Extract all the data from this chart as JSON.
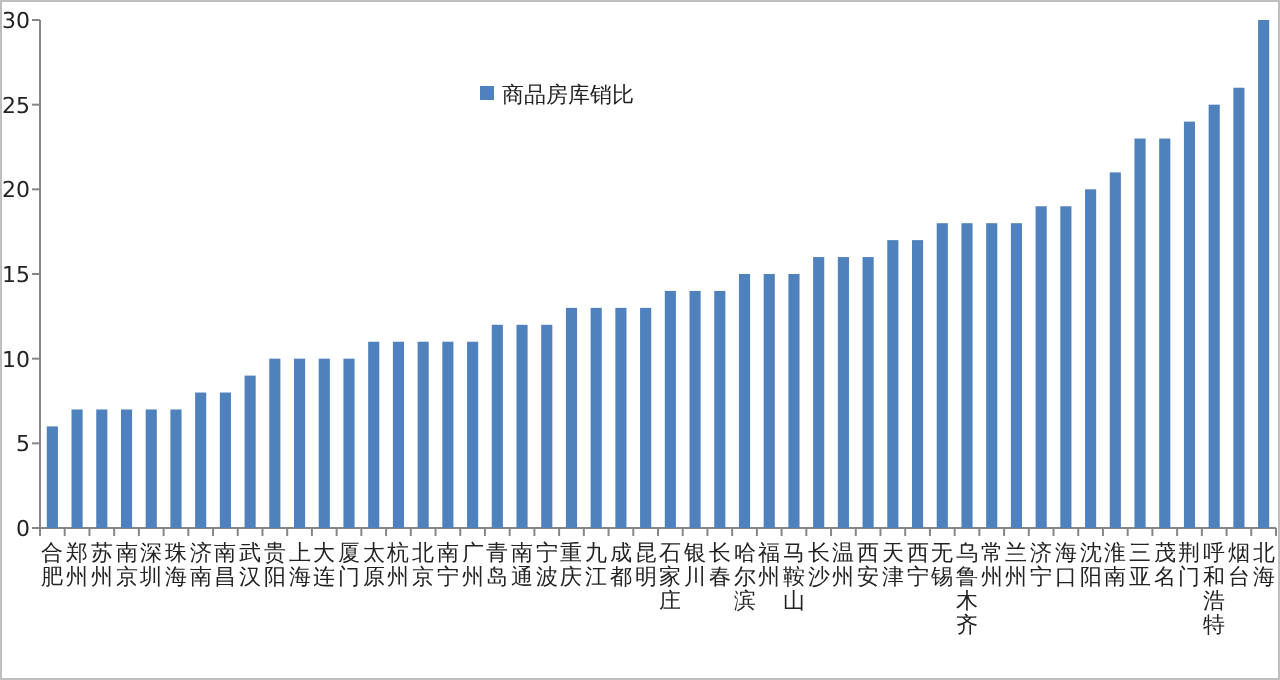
{
  "chart_data": {
    "type": "bar",
    "categories": [
      "合肥",
      "郑州",
      "苏州",
      "南京",
      "深圳",
      "珠海",
      "济南",
      "南昌",
      "武汉",
      "贵阳",
      "上海",
      "大连",
      "厦门",
      "太原",
      "杭州",
      "北京",
      "南宁",
      "广州",
      "青岛",
      "南通",
      "宁波",
      "重庆",
      "九江",
      "成都",
      "昆明",
      "石家庄",
      "银川",
      "长春",
      "哈尔滨",
      "福州",
      "马鞍山",
      "长沙",
      "温州",
      "西安",
      "天津",
      "西宁",
      "无锡",
      "乌鲁木齐",
      "常州",
      "兰州",
      "济宁",
      "海口",
      "沈阳",
      "淮南",
      "三亚",
      "茂名",
      "荆门",
      "呼和浩特",
      "烟台",
      "北海"
    ],
    "series": [
      {
        "name": "商品房库销比",
        "color": "#4f81bd",
        "values": [
          6,
          7,
          7,
          7,
          7,
          7,
          8,
          8,
          9,
          10,
          10,
          10,
          10,
          11,
          11,
          11,
          11,
          11,
          12,
          12,
          12,
          13,
          13,
          13,
          13,
          14,
          14,
          14,
          15,
          15,
          15,
          16,
          16,
          16,
          17,
          17,
          18,
          18,
          18,
          18,
          19,
          19,
          20,
          21,
          23,
          23,
          24,
          25,
          26,
          30
        ]
      }
    ],
    "ylim": [
      0,
      30
    ],
    "yticks": [
      0,
      5,
      10,
      15,
      20,
      25,
      30
    ],
    "legend": "top left",
    "grid": false
  }
}
